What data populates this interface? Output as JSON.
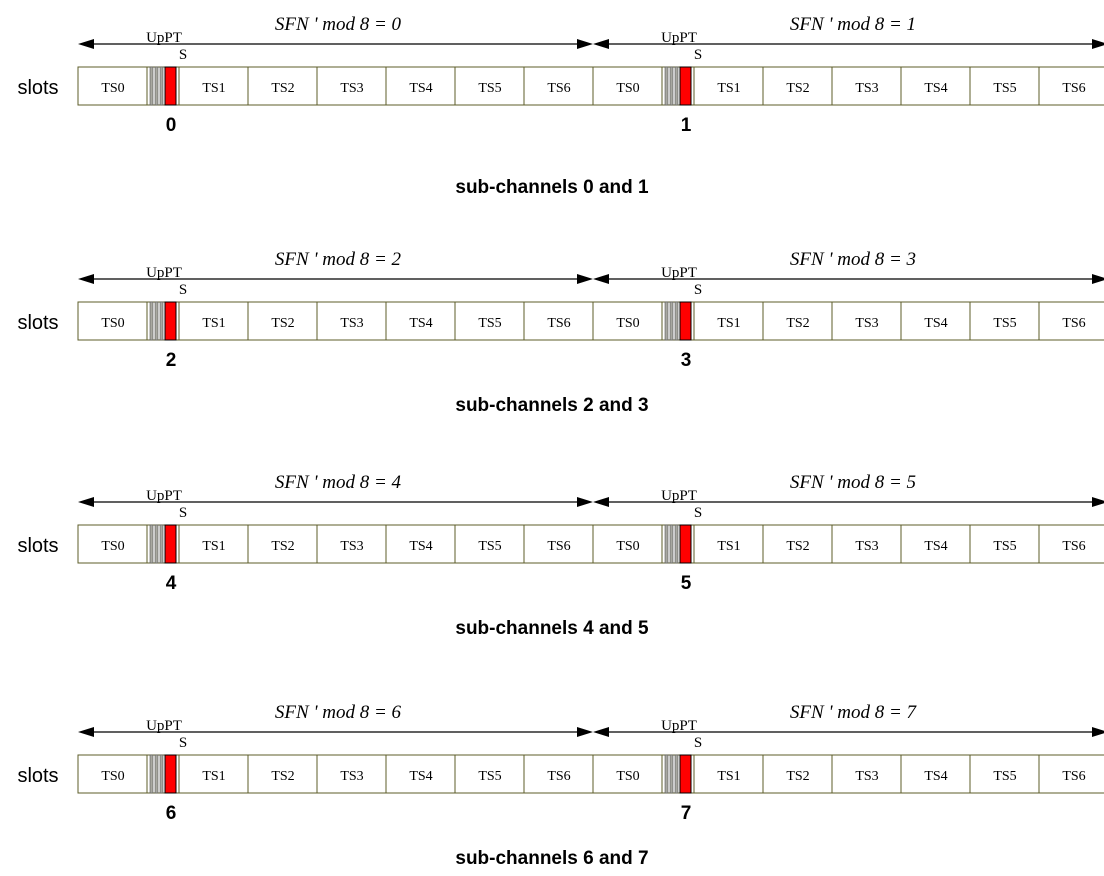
{
  "colors": {
    "slot_border": "#5c5c2a",
    "upPTS_fill": "#ff0000",
    "guard_fill": "#a8a8a0",
    "arrow": "#000000"
  },
  "row_label": "slots",
  "upPTS_label_top": "UpPT",
  "upPTS_label_bottom": "S",
  "slot_names": [
    "TS0",
    "TS1",
    "TS2",
    "TS3",
    "TS4",
    "TS5",
    "TS6"
  ],
  "mod_texts": [
    [
      "SFN ' mod 8 = 0",
      "SFN ' mod 8 = 1"
    ],
    [
      "SFN ' mod 8 = 2",
      "SFN ' mod 8 = 3"
    ],
    [
      "SFN ' mod 8 = 4",
      "SFN ' mod 8 = 5"
    ],
    [
      "SFN ' mod 8 = 6",
      "SFN ' mod 8 = 7"
    ]
  ],
  "subchannel_numbers": [
    [
      "0",
      "1"
    ],
    [
      "2",
      "3"
    ],
    [
      "4",
      "5"
    ],
    [
      "6",
      "7"
    ]
  ],
  "captions": [
    "sub-channels 0 and 1",
    "sub-channels 2 and 3",
    "sub-channels 4 and 5",
    "sub-channels 6 and 7"
  ]
}
